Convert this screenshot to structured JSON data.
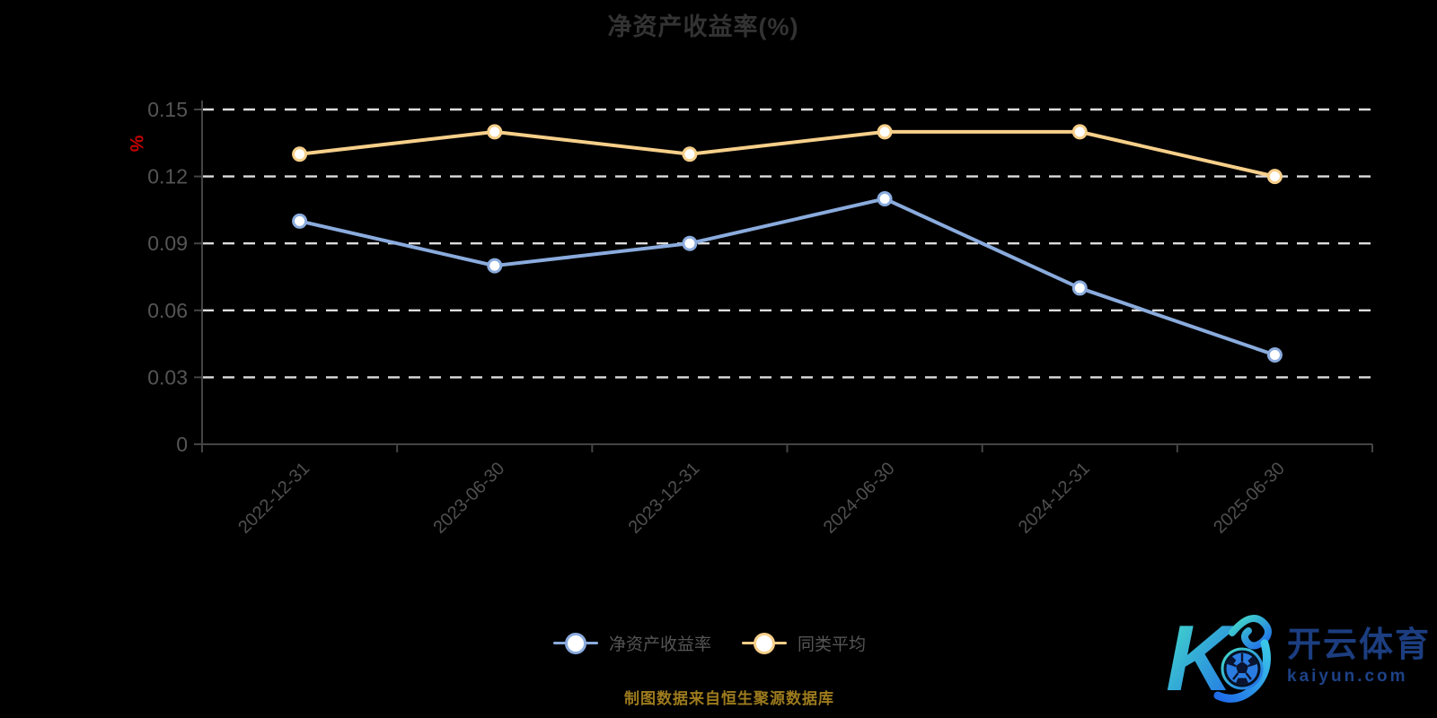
{
  "title": "净资产收益率(%)",
  "chart_data": {
    "type": "line",
    "categories": [
      "2022-12-31",
      "2023-06-30",
      "2023-12-31",
      "2024-06-30",
      "2024-12-31",
      "2025-06-30"
    ],
    "series": [
      {
        "name": "净资产收益率",
        "color": "#8aabdd",
        "values": [
          0.1,
          0.08,
          0.09,
          0.11,
          0.07,
          0.04
        ]
      },
      {
        "name": "同类平均",
        "color": "#f6cf8a",
        "values": [
          0.13,
          0.14,
          0.13,
          0.14,
          0.14,
          0.12
        ]
      }
    ],
    "ylim": [
      0,
      0.15
    ],
    "yticks": [
      0,
      0.03,
      0.06,
      0.09,
      0.12,
      0.15
    ],
    "y_axis_unit": "%",
    "y_axis_unit_color": "#c40000",
    "title": "净资产收益率(%)",
    "xlabel": "",
    "ylabel": "",
    "grid": "horizontal dashed",
    "gridline_color": "#dddddd",
    "axis_line_color": "#444444",
    "axis_label_color": "#555555",
    "marker": "empty-circle",
    "legend_position": "bottom",
    "x_label_rotation": 45
  },
  "legend": {
    "items": [
      {
        "label": "净资产收益率",
        "color": "#8aabdd"
      },
      {
        "label": "同类平均",
        "color": "#f6cf8a"
      }
    ]
  },
  "source_note": "制图数据来自恒生聚源数据库",
  "watermark": {
    "brand_cn": "开云体育",
    "brand_url": "kaiyun.com",
    "logo_gradient_start": "#45e0c8",
    "logo_gradient_end": "#1f6ae8",
    "text_color": "#1c3e80"
  },
  "colors": {
    "background": "#000000",
    "title": "#333333",
    "legend_text": "#555555",
    "source_text": "#9d7b1e"
  }
}
